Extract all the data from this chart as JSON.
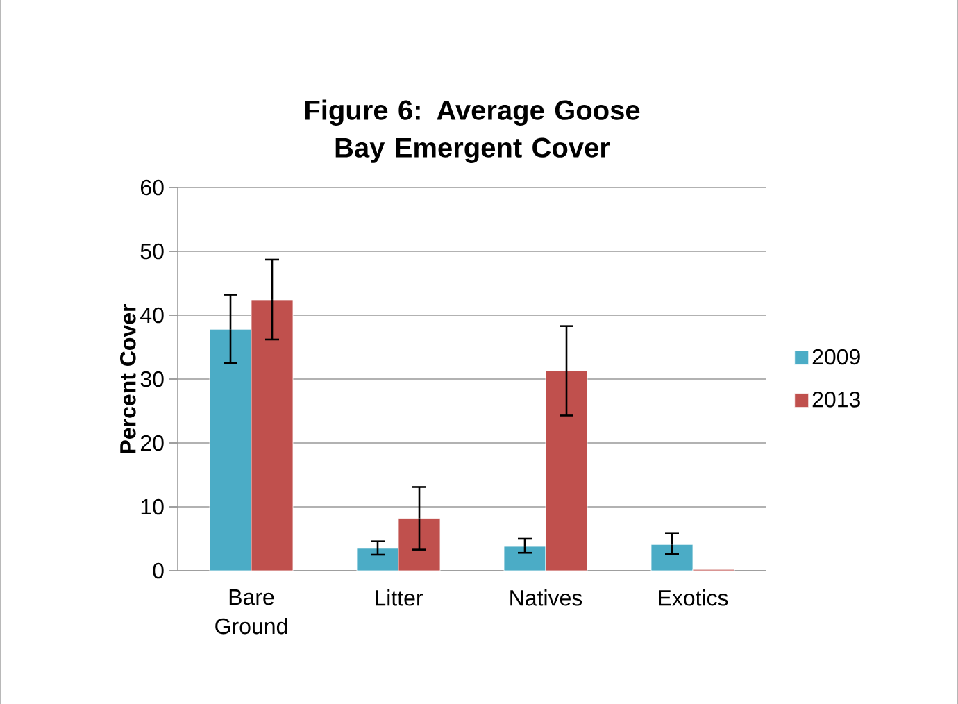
{
  "chart_data": {
    "type": "bar",
    "title": "Figure 6: Average Goose Bay Emergent Cover",
    "ylabel": "Percent Cover",
    "categories": [
      "Bare Ground",
      "Litter",
      "Natives",
      "Exotics"
    ],
    "series": [
      {
        "name": "2009",
        "color": "#4bacc6",
        "values": [
          37.8,
          3.5,
          3.8,
          4.1
        ],
        "errors": [
          [
            32.5,
            43.2
          ],
          [
            2.5,
            4.6
          ],
          [
            2.8,
            5.0
          ],
          [
            2.6,
            5.9
          ]
        ]
      },
      {
        "name": "2013",
        "color": "#c0504d",
        "values": [
          42.4,
          8.2,
          31.3,
          0.2
        ],
        "errors": [
          [
            36.2,
            48.7
          ],
          [
            3.3,
            13.1
          ],
          [
            24.3,
            38.3
          ],
          null
        ]
      }
    ],
    "ylim": [
      0,
      60
    ],
    "yticks": [
      0,
      10,
      20,
      30,
      40,
      50,
      60
    ],
    "grid": "y",
    "legend": "right"
  }
}
